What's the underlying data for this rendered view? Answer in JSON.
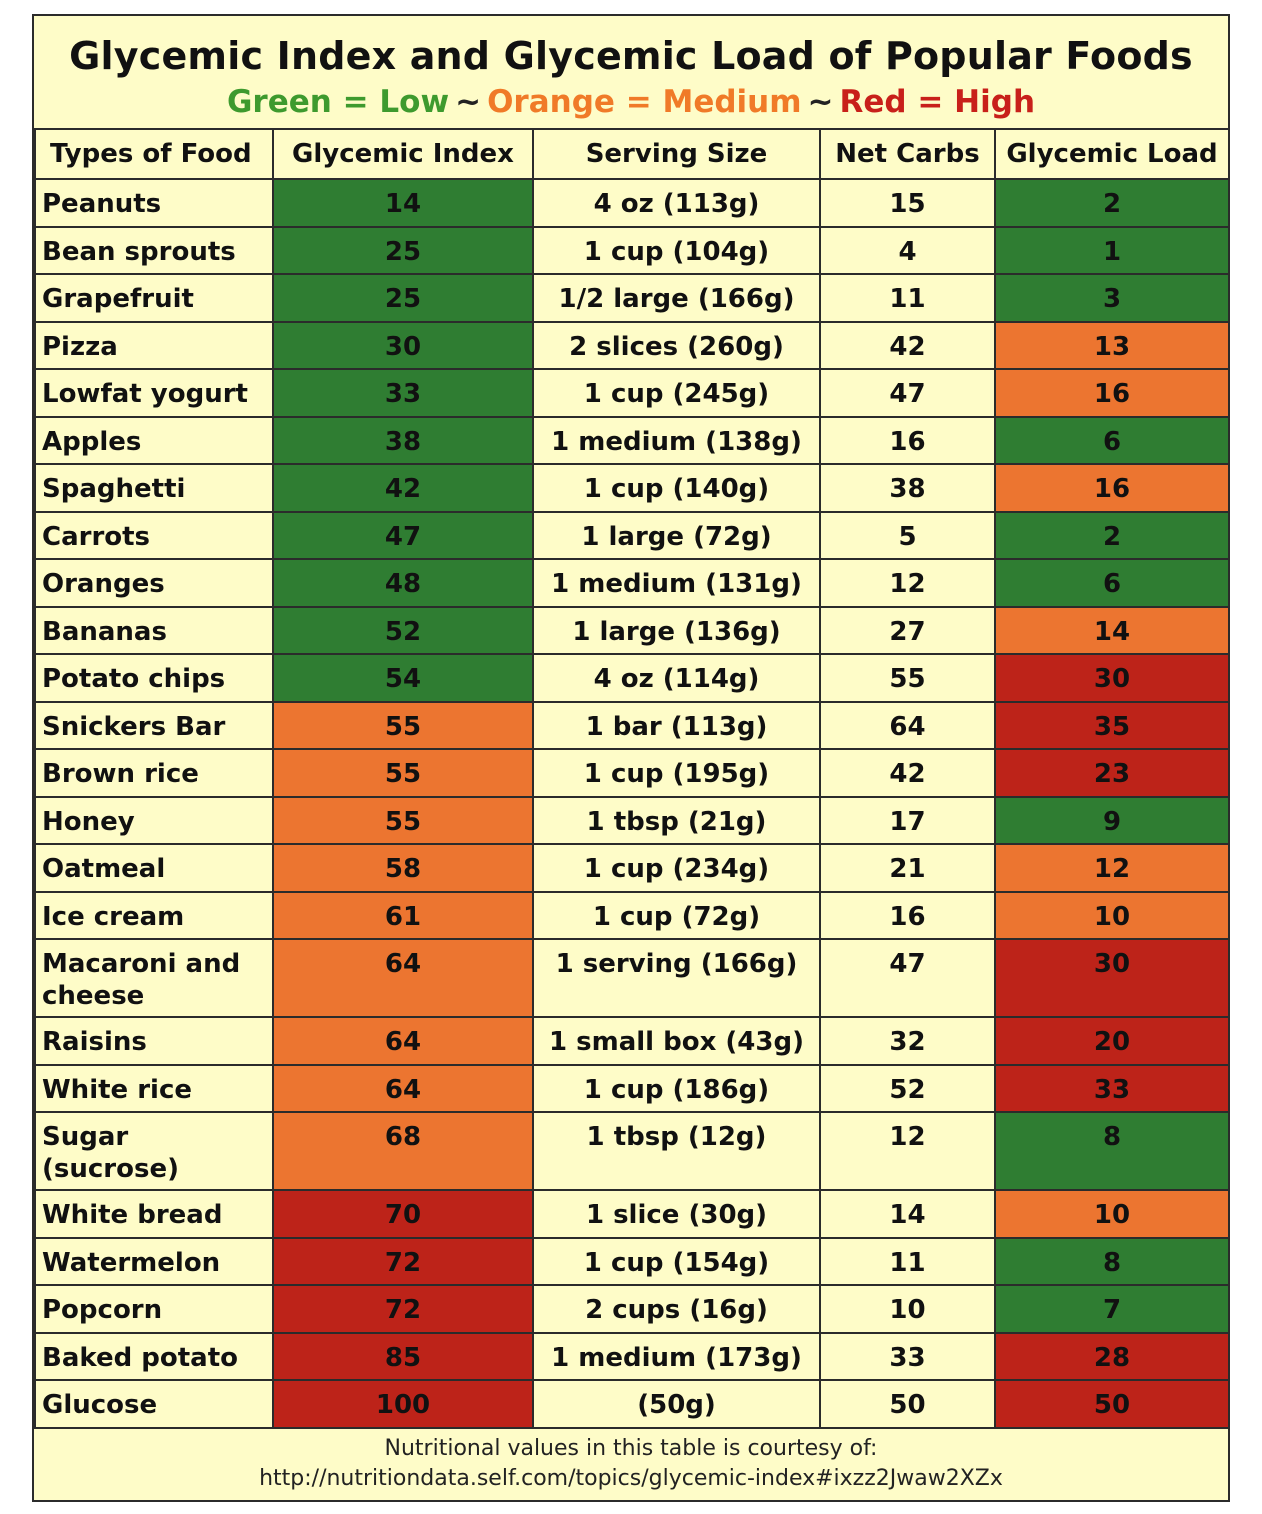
{
  "title": "Glycemic Index and Glycemic Load of Popular Foods",
  "legend": {
    "green": "Green = Low",
    "orange": "Orange = Medium",
    "red": "Red = High",
    "separator": "~"
  },
  "colors": {
    "green": "#2f7d32",
    "orange": "#ec7530",
    "red": "#bd2319",
    "background": "#fefcc8"
  },
  "columns": [
    "Types of Food",
    "Glycemic Index",
    "Serving Size",
    "Net Carbs",
    "Glycemic Load"
  ],
  "rows": [
    {
      "food": "Peanuts",
      "gi": "14",
      "gi_level": "green",
      "serving": "4 oz (113g)",
      "carbs": "15",
      "gl": "2",
      "gl_level": "green"
    },
    {
      "food": "Bean sprouts",
      "gi": "25",
      "gi_level": "green",
      "serving": "1 cup (104g)",
      "carbs": "4",
      "gl": "1",
      "gl_level": "green"
    },
    {
      "food": "Grapefruit",
      "gi": "25",
      "gi_level": "green",
      "serving": "1/2 large (166g)",
      "carbs": "11",
      "gl": "3",
      "gl_level": "green"
    },
    {
      "food": "Pizza",
      "gi": "30",
      "gi_level": "green",
      "serving": "2 slices (260g)",
      "carbs": "42",
      "gl": "13",
      "gl_level": "orange"
    },
    {
      "food": "Lowfat yogurt",
      "gi": "33",
      "gi_level": "green",
      "serving": "1 cup (245g)",
      "carbs": "47",
      "gl": "16",
      "gl_level": "orange"
    },
    {
      "food": "Apples",
      "gi": "38",
      "gi_level": "green",
      "serving": "1 medium (138g)",
      "carbs": "16",
      "gl": "6",
      "gl_level": "green"
    },
    {
      "food": "Spaghetti",
      "gi": "42",
      "gi_level": "green",
      "serving": "1 cup (140g)",
      "carbs": "38",
      "gl": "16",
      "gl_level": "orange"
    },
    {
      "food": "Carrots",
      "gi": "47",
      "gi_level": "green",
      "serving": "1 large (72g)",
      "carbs": "5",
      "gl": "2",
      "gl_level": "green"
    },
    {
      "food": "Oranges",
      "gi": "48",
      "gi_level": "green",
      "serving": "1 medium (131g)",
      "carbs": "12",
      "gl": "6",
      "gl_level": "green"
    },
    {
      "food": "Bananas",
      "gi": "52",
      "gi_level": "green",
      "serving": "1 large (136g)",
      "carbs": "27",
      "gl": "14",
      "gl_level": "orange"
    },
    {
      "food": "Potato chips",
      "gi": "54",
      "gi_level": "green",
      "serving": "4 oz (114g)",
      "carbs": "55",
      "gl": "30",
      "gl_level": "red"
    },
    {
      "food": "Snickers Bar",
      "gi": "55",
      "gi_level": "orange",
      "serving": "1 bar (113g)",
      "carbs": "64",
      "gl": "35",
      "gl_level": "red"
    },
    {
      "food": "Brown rice",
      "gi": "55",
      "gi_level": "orange",
      "serving": "1 cup (195g)",
      "carbs": "42",
      "gl": "23",
      "gl_level": "red"
    },
    {
      "food": "Honey",
      "gi": "55",
      "gi_level": "orange",
      "serving": "1 tbsp (21g)",
      "carbs": "17",
      "gl": "9",
      "gl_level": "green"
    },
    {
      "food": "Oatmeal",
      "gi": "58",
      "gi_level": "orange",
      "serving": "1 cup (234g)",
      "carbs": "21",
      "gl": "12",
      "gl_level": "orange"
    },
    {
      "food": "Ice cream",
      "gi": "61",
      "gi_level": "orange",
      "serving": "1 cup (72g)",
      "carbs": "16",
      "gl": "10",
      "gl_level": "orange"
    },
    {
      "food": "Macaroni and cheese",
      "gi": "64",
      "gi_level": "orange",
      "serving": "1 serving (166g)",
      "carbs": "47",
      "gl": "30",
      "gl_level": "red",
      "tall": true
    },
    {
      "food": "Raisins",
      "gi": "64",
      "gi_level": "orange",
      "serving": "1 small box (43g)",
      "carbs": "32",
      "gl": "20",
      "gl_level": "red"
    },
    {
      "food": "White rice",
      "gi": "64",
      "gi_level": "orange",
      "serving": "1 cup (186g)",
      "carbs": "52",
      "gl": "33",
      "gl_level": "red"
    },
    {
      "food": "Sugar (sucrose)",
      "gi": "68",
      "gi_level": "orange",
      "serving": "1 tbsp (12g)",
      "carbs": "12",
      "gl": "8",
      "gl_level": "green",
      "tall": true
    },
    {
      "food": "White bread",
      "gi": "70",
      "gi_level": "red",
      "serving": "1 slice (30g)",
      "carbs": "14",
      "gl": "10",
      "gl_level": "orange"
    },
    {
      "food": "Watermelon",
      "gi": "72",
      "gi_level": "red",
      "serving": "1 cup (154g)",
      "carbs": "11",
      "gl": "8",
      "gl_level": "green"
    },
    {
      "food": "Popcorn",
      "gi": "72",
      "gi_level": "red",
      "serving": "2 cups (16g)",
      "carbs": "10",
      "gl": "7",
      "gl_level": "green"
    },
    {
      "food": "Baked potato",
      "gi": "85",
      "gi_level": "red",
      "serving": "1 medium (173g)",
      "carbs": "33",
      "gl": "28",
      "gl_level": "red"
    },
    {
      "food": "Glucose",
      "gi": "100",
      "gi_level": "red",
      "serving": "(50g)",
      "carbs": "50",
      "gl": "50",
      "gl_level": "red"
    }
  ],
  "footer": {
    "line1": "Nutritional values in this table is courtesy of:",
    "line2": "http://nutritiondata.self.com/topics/glycemic-index#ixzz2Jwaw2XZx"
  }
}
